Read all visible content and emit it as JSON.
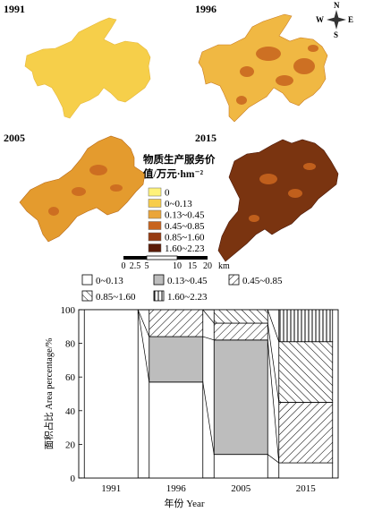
{
  "maps": {
    "panels": [
      {
        "year": "1991",
        "fill": "#f6cf4a"
      },
      {
        "year": "1996",
        "fill": "#e9a73a"
      },
      {
        "year": "2005",
        "fill": "#e39a2e"
      },
      {
        "year": "2015",
        "fill": "#7a3410"
      }
    ],
    "compass": {
      "n": "N",
      "s": "S",
      "e": "E",
      "w": "W"
    },
    "legend": {
      "title_line1": "物质生产服务价",
      "title_line2": "值/万元·hm⁻²",
      "items": [
        {
          "label": "0",
          "color": "#fff27a"
        },
        {
          "label": "0~0.13",
          "color": "#f7cd4b"
        },
        {
          "label": "0.13~0.45",
          "color": "#eaa53a"
        },
        {
          "label": "0.45~0.85",
          "color": "#c8641e"
        },
        {
          "label": "0.85~1.60",
          "color": "#973c12"
        },
        {
          "label": "1.60~2.23",
          "color": "#5a1c08"
        }
      ]
    },
    "scalebar": {
      "ticks": [
        "0",
        "2.5",
        "5",
        "10",
        "15",
        "20"
      ],
      "unit": "km"
    }
  },
  "chart_data": {
    "type": "bar",
    "stacked": true,
    "categories": [
      "1991",
      "1996",
      "2005",
      "2015"
    ],
    "series": [
      {
        "name": "0~0.13",
        "pattern": "blank",
        "values": [
          100,
          57,
          14,
          9
        ]
      },
      {
        "name": "0.13~0.45",
        "pattern": "gray",
        "values": [
          0,
          27,
          68,
          0
        ]
      },
      {
        "name": "0.45~0.85",
        "pattern": "slash",
        "values": [
          0,
          16,
          10,
          36
        ]
      },
      {
        "name": "0.85~1.60",
        "pattern": "backslash",
        "values": [
          0,
          0,
          8,
          36
        ]
      },
      {
        "name": "1.60~2.23",
        "pattern": "vertical",
        "values": [
          0,
          0,
          0,
          19
        ]
      }
    ],
    "xlabel": "年份 Year",
    "ylabel": "面积占比 Area percentage/%",
    "ylim": [
      0,
      100
    ],
    "yticks": [
      "0",
      "20",
      "40",
      "60",
      "80",
      "100"
    ],
    "grid": false,
    "legend_position": "top"
  }
}
